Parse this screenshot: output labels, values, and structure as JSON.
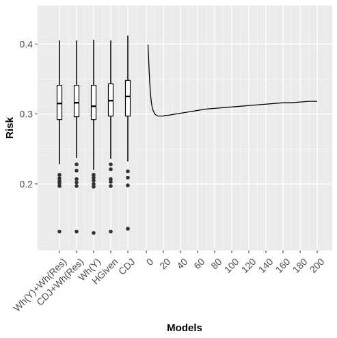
{
  "chart_data": {
    "type": "boxplot+line",
    "xlabel": "Models",
    "ylabel": "Risk",
    "ylim": [
      0.105,
      0.455
    ],
    "yticks": [
      0.2,
      0.3,
      0.4
    ],
    "ytick_labels": [
      "0.2",
      "0.3",
      "0.4"
    ],
    "grid": true,
    "boxes": [
      {
        "category": "Wh(Y)+Wh(Res)",
        "q1": 0.292,
        "median": 0.315,
        "q3": 0.341,
        "whisker_low": 0.228,
        "whisker_high": 0.405,
        "outliers": [
          0.213,
          0.208,
          0.204,
          0.201,
          0.197,
          0.132
        ]
      },
      {
        "category": "CDJ+Wh(Res)",
        "q1": 0.296,
        "median": 0.316,
        "q3": 0.341,
        "whisker_low": 0.237,
        "whisker_high": 0.405,
        "outliers": [
          0.228,
          0.219,
          0.207,
          0.202,
          0.197,
          0.132
        ]
      },
      {
        "category": "Wh(Y)",
        "q1": 0.292,
        "median": 0.311,
        "q3": 0.341,
        "whisker_low": 0.22,
        "whisker_high": 0.406,
        "outliers": [
          0.213,
          0.209,
          0.205,
          0.2,
          0.196,
          0.13
        ]
      },
      {
        "category": "HGiven",
        "q1": 0.297,
        "median": 0.319,
        "q3": 0.343,
        "whisker_low": 0.236,
        "whisker_high": 0.405,
        "outliers": [
          0.228,
          0.221,
          0.207,
          0.203,
          0.197,
          0.132
        ]
      },
      {
        "category": "CDJ",
        "q1": 0.297,
        "median": 0.325,
        "q3": 0.348,
        "whisker_low": 0.232,
        "whisker_high": 0.412,
        "outliers": [
          0.218,
          0.209,
          0.198,
          0.136
        ]
      }
    ],
    "line": {
      "x_ticks": [
        0,
        20,
        40,
        60,
        80,
        100,
        120,
        140,
        160,
        180,
        200
      ],
      "x_tick_labels": [
        "0",
        "20",
        "40",
        "60",
        "80",
        "100",
        "120",
        "140",
        "160",
        "180",
        "200"
      ],
      "x": [
        2,
        3,
        4,
        5,
        6,
        7,
        8,
        10,
        12,
        14,
        16,
        18,
        20,
        22,
        25,
        30,
        35,
        40,
        50,
        60,
        70,
        80,
        90,
        100,
        110,
        120,
        130,
        140,
        150,
        160,
        170,
        180,
        190,
        200
      ],
      "y": [
        0.399,
        0.371,
        0.345,
        0.327,
        0.316,
        0.309,
        0.305,
        0.3,
        0.298,
        0.297,
        0.297,
        0.297,
        0.297,
        0.298,
        0.298,
        0.299,
        0.3,
        0.301,
        0.303,
        0.305,
        0.307,
        0.308,
        0.309,
        0.31,
        0.311,
        0.312,
        0.313,
        0.314,
        0.315,
        0.316,
        0.316,
        0.317,
        0.318,
        0.318
      ]
    }
  }
}
